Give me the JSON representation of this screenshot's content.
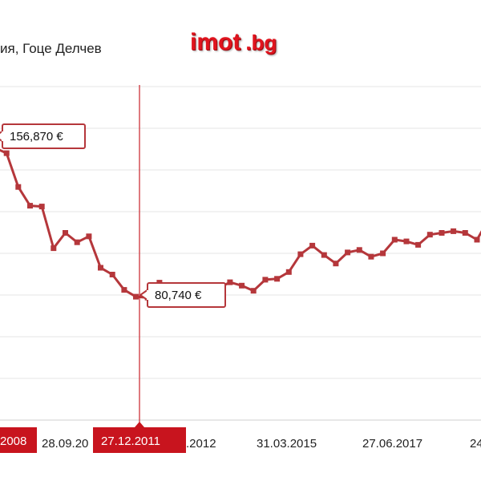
{
  "header": {
    "subtitle": "ия, Гоце Делчев",
    "logo_main": "imot",
    "logo_tld": ".bg"
  },
  "colors": {
    "series": "#b5373b",
    "cursor": "#c8222a",
    "flag": "#c8141e",
    "grid": "#e6e6e6"
  },
  "chart_data": {
    "type": "line",
    "title": "",
    "xlabel": "",
    "ylabel": "",
    "ylim": [
      0,
      196000
    ],
    "grid": true,
    "x_ticks": [
      "2008",
      "28.09.20",
      ".2012",
      "31.03.2015",
      "27.06.2017",
      "24"
    ],
    "series": [
      {
        "values": [
          160000,
          156870,
          137000,
          126000,
          125500,
          101000,
          110000,
          104500,
          108000,
          89500,
          85500,
          76500,
          72500,
          72000,
          80740,
          70000,
          71000,
          73000,
          75500,
          77500,
          81000,
          79000,
          76000,
          82500,
          83000,
          87000,
          97500,
          102500,
          97000,
          92000,
          98500,
          100000,
          96000,
          98000,
          106000,
          105000,
          103000,
          109000,
          110000,
          111000,
          110000,
          106000,
          118000
        ]
      }
    ],
    "callouts": [
      {
        "label": "156,870 €",
        "value": 156870
      },
      {
        "label": "80,740 €",
        "value": 80740
      }
    ],
    "cursor_label": "27.12.2011",
    "left_flag_label": "2008"
  }
}
